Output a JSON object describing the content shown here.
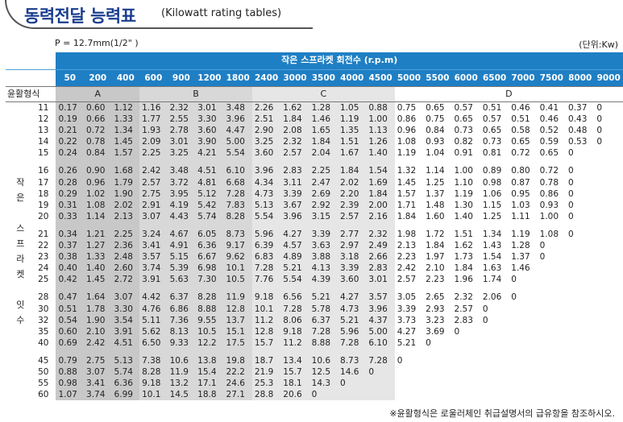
{
  "title": {
    "korean": "동력전달 능력표",
    "english": "(Kilowatt rating tables)"
  },
  "pitch_label": "P = 12.7mm(1/2\" )",
  "unit_label": "(단위:Kw)",
  "header": {
    "rpm_title": "작은 스프라켓 회전수 (r.p.m)",
    "lubrication_label": "윤활형식",
    "side_label": [
      "작",
      "은",
      "",
      "스",
      "프",
      "라",
      "켓",
      "",
      "잇",
      "수"
    ]
  },
  "rpms": [
    "50",
    "200",
    "400",
    "600",
    "900",
    "1200",
    "1800",
    "2400",
    "3000",
    "3500",
    "4000",
    "4500",
    "5000",
    "5500",
    "6000",
    "6500",
    "7000",
    "7500",
    "8000",
    "9000"
  ],
  "lubrication_groups": [
    {
      "label": "A",
      "span": 3
    },
    {
      "label": "B",
      "span": 4
    },
    {
      "label": "C",
      "span": 5
    },
    {
      "label": "D",
      "span": 8
    }
  ],
  "row_groups": [
    [
      {
        "teeth": "11",
        "values": [
          "0.17",
          "0.60",
          "1.12",
          "1.16",
          "2.32",
          "3.01",
          "3.48",
          "2.26",
          "1.62",
          "1.28",
          "1.05",
          "0.88",
          "0.75",
          "0.65",
          "0.57",
          "0.51",
          "0.46",
          "0.41",
          "0.37",
          "0"
        ]
      },
      {
        "teeth": "12",
        "values": [
          "0.19",
          "0.66",
          "1.33",
          "1.77",
          "2.55",
          "3.30",
          "3.96",
          "2.51",
          "1.84",
          "1.46",
          "1.19",
          "1.00",
          "0.86",
          "0.75",
          "0.65",
          "0.57",
          "0.51",
          "0.46",
          "0.43",
          "0"
        ]
      },
      {
        "teeth": "13",
        "values": [
          "0.21",
          "0.72",
          "1.34",
          "1.93",
          "2.78",
          "3.60",
          "4.47",
          "2.90",
          "2.08",
          "1.65",
          "1.35",
          "1.13",
          "0.96",
          "0.84",
          "0.73",
          "0.65",
          "0.58",
          "0.52",
          "0.48",
          "0"
        ]
      },
      {
        "teeth": "14",
        "values": [
          "0.22",
          "0.78",
          "1.45",
          "2.09",
          "3.01",
          "3.90",
          "5.00",
          "3.25",
          "2.32",
          "1.84",
          "1.51",
          "1.26",
          "1.08",
          "0.93",
          "0.82",
          "0.73",
          "0.65",
          "0.59",
          "0.53",
          "0"
        ]
      },
      {
        "teeth": "15",
        "values": [
          "0.24",
          "0.84",
          "1.57",
          "2.25",
          "3.25",
          "4.21",
          "5.54",
          "3.60",
          "2.57",
          "2.04",
          "1.67",
          "1.40",
          "1.19",
          "1.04",
          "0.91",
          "0.81",
          "0.72",
          "0.65",
          "0",
          ""
        ]
      }
    ],
    [
      {
        "teeth": "16",
        "values": [
          "0.26",
          "0.90",
          "1.68",
          "2.42",
          "3.48",
          "4.51",
          "6.10",
          "3.96",
          "2.83",
          "2.25",
          "1.84",
          "1.54",
          "1.32",
          "1.14",
          "1.00",
          "0.89",
          "0.80",
          "0.72",
          "0",
          ""
        ]
      },
      {
        "teeth": "17",
        "values": [
          "0.28",
          "0.96",
          "1.79",
          "2.57",
          "3.72",
          "4.81",
          "6.68",
          "4.34",
          "3.11",
          "2.47",
          "2.02",
          "1.69",
          "1.45",
          "1.25",
          "1.10",
          "0.98",
          "0.87",
          "0.78",
          "0",
          ""
        ]
      },
      {
        "teeth": "18",
        "values": [
          "0.29",
          "1.02",
          "1.90",
          "2.75",
          "3.95",
          "5.12",
          "7.28",
          "4.73",
          "3.39",
          "2.69",
          "2.20",
          "1.84",
          "1.57",
          "1.37",
          "1.19",
          "1.06",
          "0.95",
          "0.86",
          "0",
          ""
        ]
      },
      {
        "teeth": "19",
        "values": [
          "0.31",
          "1.08",
          "2.02",
          "2.91",
          "4.19",
          "5.42",
          "7.83",
          "5.13",
          "3.67",
          "2.92",
          "2.39",
          "2.00",
          "1.71",
          "1.48",
          "1.30",
          "1.15",
          "1.03",
          "0.93",
          "0",
          ""
        ]
      },
      {
        "teeth": "20",
        "values": [
          "0.33",
          "1.14",
          "2.13",
          "3.07",
          "4.43",
          "5.74",
          "8.28",
          "5.54",
          "3.96",
          "3.15",
          "2.57",
          "2.16",
          "1.84",
          "1.60",
          "1.40",
          "1.25",
          "1.11",
          "1.00",
          "0",
          ""
        ]
      }
    ],
    [
      {
        "teeth": "21",
        "values": [
          "0.34",
          "1.21",
          "2.25",
          "3.24",
          "4.67",
          "6.05",
          "8.73",
          "5.96",
          "4.27",
          "3.39",
          "2.77",
          "2.32",
          "1.98",
          "1.72",
          "1.51",
          "1.34",
          "1.19",
          "1.08",
          "0",
          ""
        ]
      },
      {
        "teeth": "22",
        "values": [
          "0.37",
          "1.27",
          "2.36",
          "3.41",
          "4.91",
          "6.36",
          "9.17",
          "6.39",
          "4.57",
          "3.63",
          "2.97",
          "2.49",
          "2.13",
          "1.84",
          "1.62",
          "1.43",
          "1.28",
          "0",
          "",
          ""
        ]
      },
      {
        "teeth": "23",
        "values": [
          "0.38",
          "1.33",
          "2.48",
          "3.57",
          "5.15",
          "6.67",
          "9.62",
          "6.83",
          "4.89",
          "3.88",
          "3.18",
          "2.66",
          "2.23",
          "1.97",
          "1.73",
          "1.54",
          "1.37",
          "0",
          "",
          ""
        ]
      },
      {
        "teeth": "24",
        "values": [
          "0.40",
          "1.40",
          "2.60",
          "3.74",
          "5.39",
          "6.98",
          "10.1",
          "7.28",
          "5.21",
          "4.13",
          "3.39",
          "2.83",
          "2.42",
          "2.10",
          "1.84",
          "1.63",
          "1.46",
          "",
          "",
          ""
        ]
      },
      {
        "teeth": "25",
        "values": [
          "0.42",
          "1.45",
          "2.72",
          "3.91",
          "5.63",
          "7.30",
          "10.5",
          "7.76",
          "5.54",
          "4.39",
          "3.60",
          "3.01",
          "2.57",
          "2.23",
          "1.96",
          "1.74",
          "0",
          "",
          "",
          ""
        ]
      }
    ],
    [
      {
        "teeth": "28",
        "values": [
          "0.47",
          "1.64",
          "3.07",
          "4.42",
          "6.37",
          "8.28",
          "11.9",
          "9.18",
          "6.56",
          "5.21",
          "4.27",
          "3.57",
          "3.05",
          "2.65",
          "2.32",
          "2.06",
          "0",
          "",
          "",
          ""
        ]
      },
      {
        "teeth": "30",
        "values": [
          "0.51",
          "1.78",
          "3.30",
          "4.76",
          "6.86",
          "8.88",
          "12.8",
          "10.1",
          "7.28",
          "5.78",
          "4.73",
          "3.96",
          "3.39",
          "2.93",
          "2.57",
          "0",
          "",
          "",
          "",
          ""
        ]
      },
      {
        "teeth": "32",
        "values": [
          "0.54",
          "1.90",
          "3.54",
          "5.11",
          "7.36",
          "9.55",
          "13.7",
          "11.2",
          "8.06",
          "6.37",
          "5.21",
          "4.37",
          "3.73",
          "3.23",
          "2.83",
          "0",
          "",
          "",
          "",
          ""
        ]
      },
      {
        "teeth": "35",
        "values": [
          "0.60",
          "2.10",
          "3.91",
          "5.62",
          "8.13",
          "10.5",
          "15.1",
          "12.8",
          "9.18",
          "7.28",
          "5.96",
          "5.00",
          "4.27",
          "3.69",
          "0",
          "",
          "",
          "",
          "",
          ""
        ]
      },
      {
        "teeth": "40",
        "values": [
          "0.69",
          "2.42",
          "4.51",
          "6.50",
          "9.33",
          "12.2",
          "17.5",
          "15.7",
          "11.2",
          "8.88",
          "7.28",
          "6.10",
          "5.21",
          "0",
          "",
          "",
          "",
          "",
          "",
          ""
        ]
      }
    ],
    [
      {
        "teeth": "45",
        "values": [
          "0.79",
          "2.75",
          "5.13",
          "7.38",
          "10.6",
          "13.8",
          "19.8",
          "18.7",
          "13.4",
          "10.6",
          "8.73",
          "7.28",
          "0",
          "",
          "",
          "",
          "",
          "",
          "",
          ""
        ]
      },
      {
        "teeth": "50",
        "values": [
          "0.88",
          "3.07",
          "5.74",
          "8.28",
          "11.9",
          "15.4",
          "22.2",
          "21.9",
          "15.7",
          "12.5",
          "14.6",
          "0",
          "",
          "",
          "",
          "",
          "",
          "",
          "",
          ""
        ]
      },
      {
        "teeth": "55",
        "values": [
          "0.98",
          "3.41",
          "6.36",
          "9.18",
          "13.2",
          "17.1",
          "24.6",
          "25.3",
          "18.1",
          "14.3",
          "0",
          "",
          "",
          "",
          "",
          "",
          "",
          "",
          "",
          ""
        ]
      },
      {
        "teeth": "60",
        "values": [
          "1.07",
          "3.74",
          "6.99",
          "10.1",
          "14.5",
          "18.8",
          "27.1",
          "28.8",
          "20.6",
          "0",
          "",
          "",
          "",
          "",
          "",
          "",
          "",
          "",
          "",
          ""
        ]
      }
    ]
  ],
  "footnote": "※윤활형식은 로울러체인 취급설명서의 급유항을 참조하시오."
}
